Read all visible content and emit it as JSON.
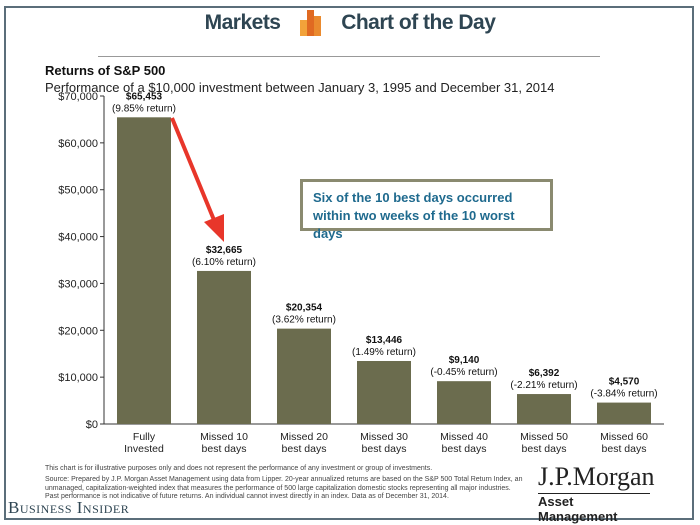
{
  "header": {
    "left": "Markets",
    "right": "Chart of the Day"
  },
  "callout": "Six of the 10 best days occurred within two weeks of the 10 worst days",
  "disclaimer": "This chart is for illustrative purposes only and does not represent the performance of any investment or group of investments.",
  "source": "Source: Prepared by J.P. Morgan Asset Management using data from Lipper. 20-year annualized returns are based on the S&P 500 Total Return Index, an unmanaged, capitalization-weighted index that measures the performance of 500 large capitalization domestic stocks representing all major industries. Past performance is not indicative of future returns. An individual cannot invest directly in an index. Data as of December 31, 2014.",
  "jpm": {
    "name": "J.P.Morgan",
    "sub": "Asset Management"
  },
  "publisher": "Business Insider",
  "colors": {
    "bar": "#6b6c4e",
    "arrow": "#e8362a",
    "callout_text": "#1f6a8e"
  },
  "chart_data": {
    "type": "bar",
    "title": "Returns of S&P 500",
    "subtitle": "Performance of a $10,000 investment between January 3, 1995 and December 31, 2014",
    "categories": [
      "Fully Invested",
      "Missed 10 best days",
      "Missed 20 best days",
      "Missed 30 best days",
      "Missed 40 best days",
      "Missed 50 best days",
      "Missed 60 best days"
    ],
    "values": [
      65453,
      32665,
      20354,
      13446,
      9140,
      6392,
      4570
    ],
    "value_labels": [
      "$65,453",
      "$32,665",
      "$20,354",
      "$13,446",
      "$9,140",
      "$6,392",
      "$4,570"
    ],
    "return_labels": [
      "(9.85% return)",
      "(6.10% return)",
      "(3.62% return)",
      "(1.49% return)",
      "(-0.45% return)",
      "(-2.21% return)",
      "(-3.84% return)"
    ],
    "ylim": [
      0,
      70000
    ],
    "yticks": [
      0,
      10000,
      20000,
      30000,
      40000,
      50000,
      60000,
      70000
    ],
    "ytick_labels": [
      "$0",
      "$10,000",
      "$20,000",
      "$30,000",
      "$40,000",
      "$50,000",
      "$60,000",
      "$70,000"
    ],
    "grid": false
  }
}
